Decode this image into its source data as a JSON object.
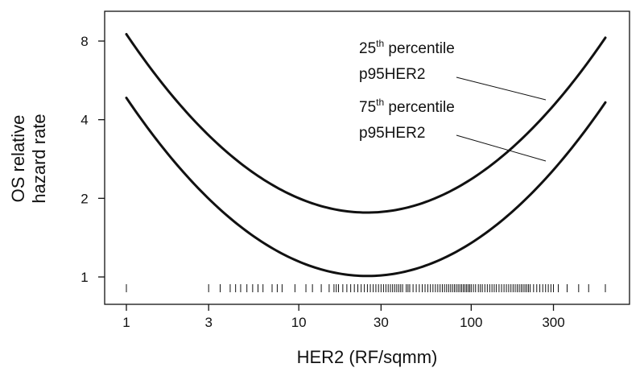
{
  "chart_data": {
    "type": "line",
    "title": "",
    "xlabel": "HER2  (RF/sqmm)",
    "ylabel_line1": "OS relative",
    "ylabel_line2": "hazard rate",
    "x_scale": "log",
    "y_scale": "log",
    "xlim": [
      0.75,
      900
    ],
    "ylim": [
      0.88,
      11
    ],
    "x_ticks": [
      1,
      3,
      10,
      30,
      100,
      300
    ],
    "x_tick_labels": [
      "1",
      "3",
      "10",
      "30",
      "100",
      "300"
    ],
    "y_ticks": [
      1,
      2,
      4,
      8
    ],
    "y_tick_labels": [
      "1",
      "2",
      "4",
      "8"
    ],
    "grid": false,
    "legend": "none",
    "series": [
      {
        "x": [
          1,
          2,
          3,
          5,
          10,
          20,
          25,
          30,
          50,
          100,
          200,
          300,
          600
        ],
        "y": [
          8.6,
          4.6,
          3.5,
          2.6,
          2.0,
          1.76,
          1.75,
          1.76,
          1.9,
          2.4,
          3.5,
          4.6,
          8.0
        ]
      },
      {
        "x": [
          1,
          2,
          3,
          5,
          10,
          20,
          25,
          30,
          50,
          100,
          200,
          300,
          600
        ],
        "y": [
          4.9,
          2.6,
          2.0,
          1.5,
          1.16,
          1.01,
          1.0,
          1.01,
          1.08,
          1.36,
          1.95,
          2.6,
          4.6
        ]
      }
    ],
    "annotations": [
      {
        "base": "25",
        "sup": "th",
        "rest": " percentile",
        "line2": "p95HER2",
        "points_to_series": 0
      },
      {
        "base": "75",
        "sup": "th",
        "rest": " percentile",
        "line2": "p95HER2",
        "points_to_series": 1
      }
    ],
    "rug_x": [
      1,
      3,
      3.5,
      4,
      4.3,
      4.6,
      5,
      5.4,
      5.8,
      6.2,
      7,
      7.5,
      8,
      9.5,
      11,
      12,
      13.5,
      15,
      16,
      16.5,
      17,
      18,
      19,
      20,
      21,
      22,
      23,
      24,
      25,
      26,
      27,
      28,
      29,
      30,
      31,
      32,
      33,
      34,
      35,
      36,
      37,
      38,
      39,
      40,
      42,
      43,
      44,
      46,
      48,
      50,
      52,
      54,
      56,
      58,
      60,
      62,
      64,
      66,
      68,
      70,
      72,
      74,
      76,
      78,
      80,
      82,
      84,
      86,
      88,
      90,
      92,
      94,
      96,
      98,
      100,
      103,
      106,
      110,
      113,
      116,
      120,
      124,
      128,
      132,
      136,
      140,
      145,
      150,
      155,
      160,
      165,
      170,
      175,
      180,
      185,
      190,
      195,
      200,
      205,
      210,
      215,
      220,
      230,
      240,
      250,
      260,
      270,
      280,
      290,
      300,
      320,
      360,
      420,
      480,
      600
    ]
  }
}
